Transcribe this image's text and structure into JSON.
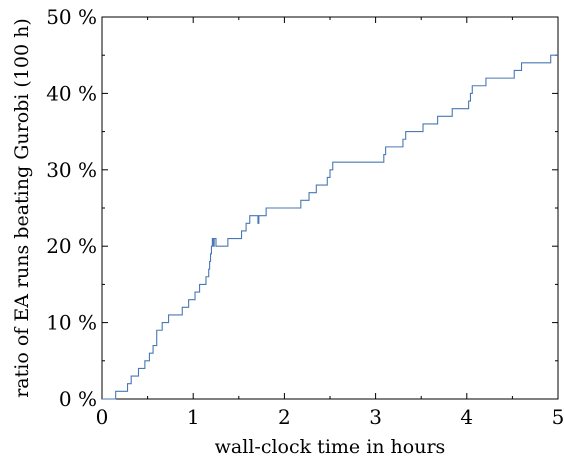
{
  "chart_data": {
    "type": "line",
    "line_shape": "step",
    "xlabel": "wall-clock time in hours",
    "ylabel": "ratio of EA runs beating Gurobi (100 h)",
    "xlim": [
      0,
      5
    ],
    "ylim": [
      0,
      50
    ],
    "x_ticks": [
      {
        "value": 0,
        "label": "0"
      },
      {
        "value": 1,
        "label": "1"
      },
      {
        "value": 2,
        "label": "2"
      },
      {
        "value": 3,
        "label": "3"
      },
      {
        "value": 4,
        "label": "4"
      },
      {
        "value": 5,
        "label": "5"
      }
    ],
    "y_ticks": [
      {
        "value": 0,
        "label": "0 %"
      },
      {
        "value": 10,
        "label": "10 %"
      },
      {
        "value": 20,
        "label": "20 %"
      },
      {
        "value": 30,
        "label": "30 %"
      },
      {
        "value": 40,
        "label": "40 %"
      },
      {
        "value": 50,
        "label": "50 %"
      }
    ],
    "x_minor_step": 0.5,
    "y_minor_step": 5,
    "grid": false,
    "legend": "none",
    "line_color": "#4a78b4",
    "series": [
      {
        "x": [
          0.15,
          0.28,
          0.32,
          0.4,
          0.47,
          0.52,
          0.56,
          0.6,
          0.66,
          0.73,
          0.88,
          0.95,
          1.02,
          1.07,
          1.14,
          1.17,
          1.18,
          1.19,
          1.2,
          1.21,
          1.22,
          1.23,
          1.25,
          1.38,
          1.53,
          1.58,
          1.62,
          1.71,
          1.72,
          1.8,
          2.18,
          2.27,
          2.35,
          2.47,
          2.5,
          2.53,
          2.56,
          2.58,
          3.09,
          3.11,
          3.3,
          3.33,
          3.52,
          3.68,
          3.84,
          4.02,
          4.04,
          4.06,
          4.21,
          4.52,
          4.6,
          4.92
        ],
        "y": [
          1,
          2,
          3,
          4,
          5,
          6,
          7,
          9,
          10,
          11,
          12,
          13,
          14,
          15,
          16,
          17,
          18,
          19,
          20,
          21,
          20,
          21,
          20,
          21,
          22,
          23,
          24,
          23,
          24,
          25,
          26,
          27,
          28,
          29,
          30,
          31,
          31,
          31,
          32,
          33,
          34,
          35,
          36,
          37,
          38,
          39,
          40,
          41,
          42,
          43,
          44,
          45
        ]
      }
    ]
  }
}
